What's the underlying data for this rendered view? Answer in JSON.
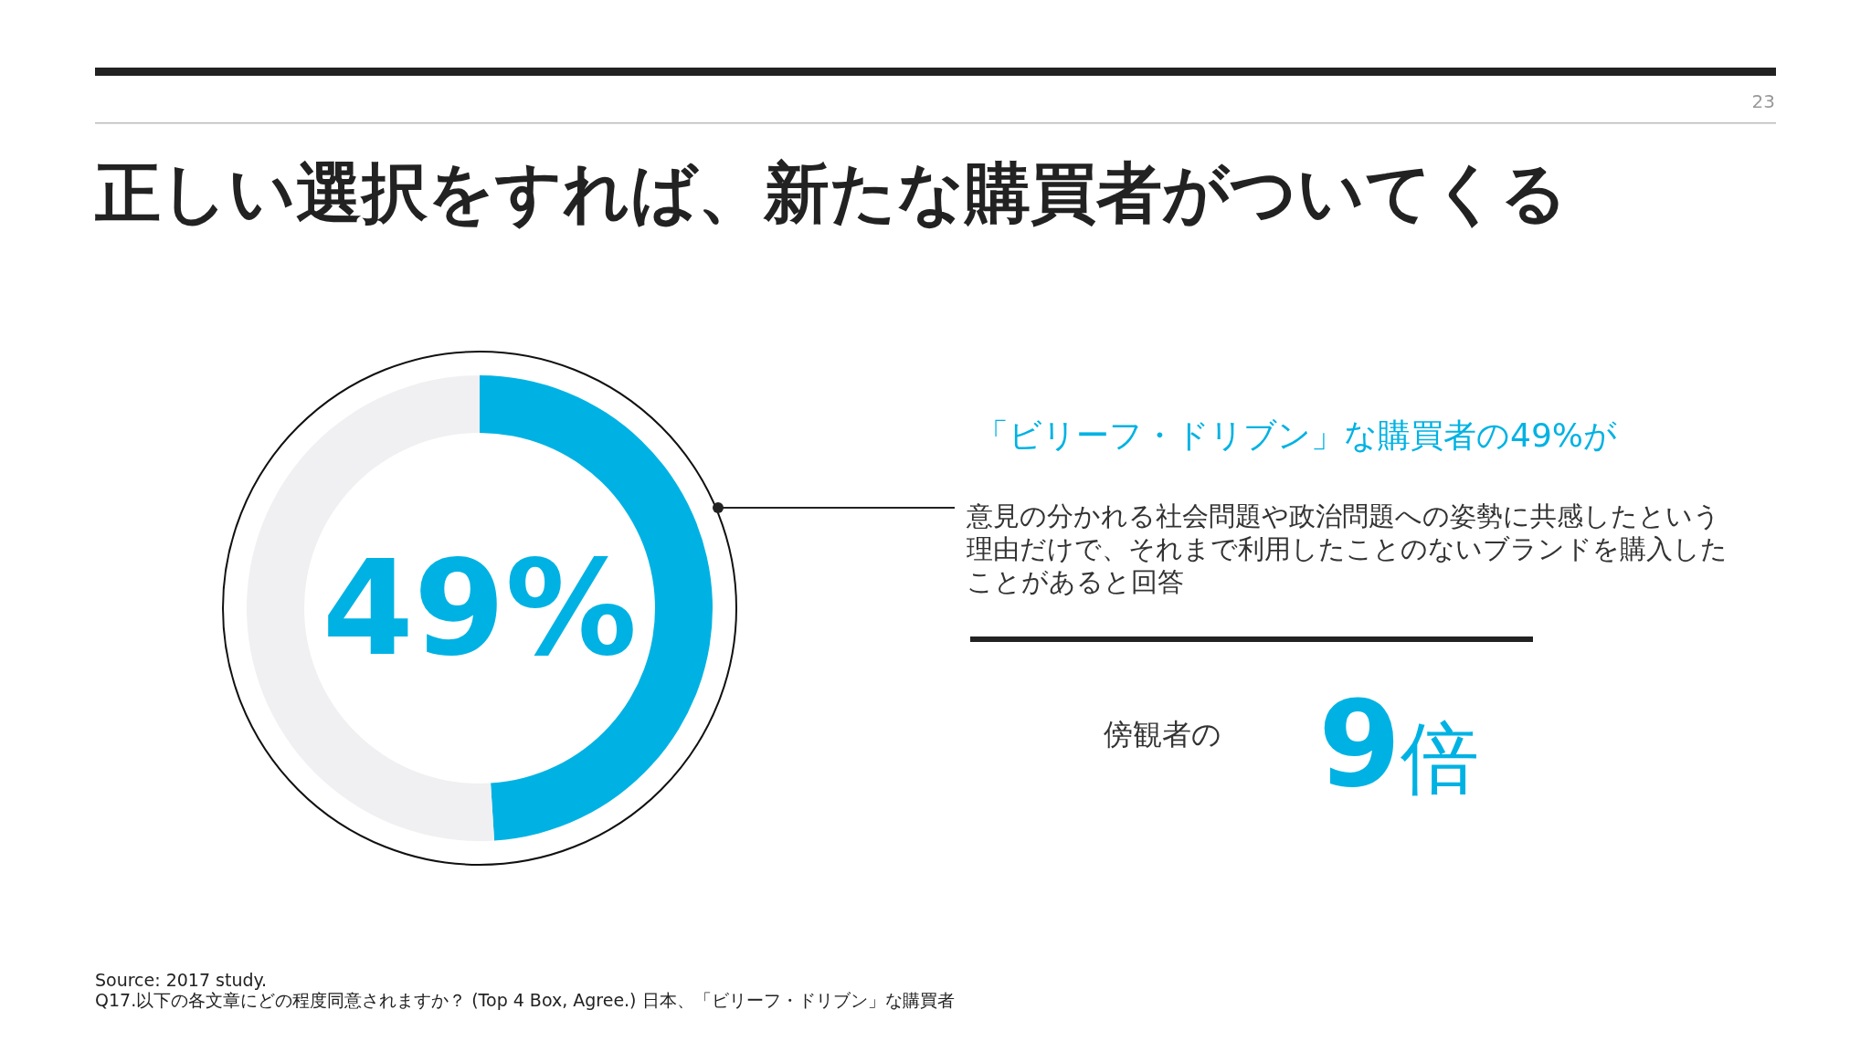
{
  "chart_data": {
    "type": "donut",
    "title": "正しい選択をすれば、新たな購買者がついてくる",
    "categories": [
      null,
      null
    ],
    "values": [
      49,
      51
    ],
    "colors": [
      "#00b2e3",
      "#f0f0f2"
    ],
    "value_labels": [
      "49%",
      null
    ],
    "annotations": [
      "「ビリーフ・ドリブン」な購買者の49%が",
      "意見の分かれる社会問題や政治問題への姿勢に共感したという理由だけで、それまで利用したことのないブランドを購入したことがあると回答",
      "傍観者の",
      "9倍",
      "23",
      "Source: 2017 study.",
      "Q17.以下の各文章にどの程度同意されますか？ (Top 4 Box, Agree.) 日本、「ビリーフ・ドリブン」な購買者"
    ]
  }
}
